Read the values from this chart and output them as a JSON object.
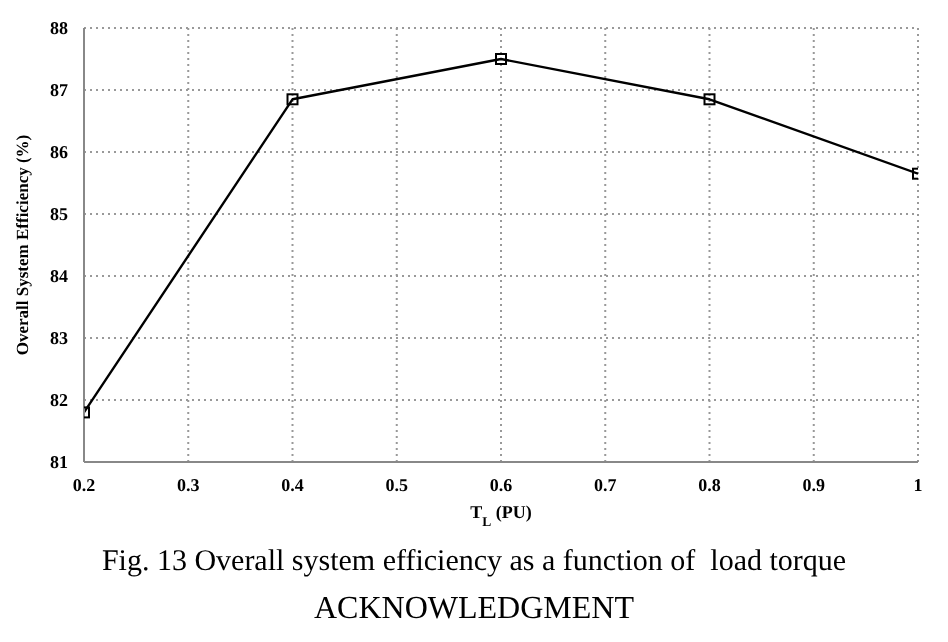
{
  "chart_data": {
    "type": "line",
    "xlabel": "T$_{L}$ (PU)",
    "ylabel": "Overall System Efficiency (%)",
    "x": [
      0.2,
      0.4,
      0.6,
      0.8,
      1
    ],
    "series": [
      {
        "color": "#000000",
        "values": [
          81.8,
          86.85,
          87.5,
          86.85,
          85.65
        ]
      }
    ],
    "xlim": [
      0.2,
      1
    ],
    "xticks": [
      0.2,
      0.3,
      0.4,
      0.5,
      0.6,
      0.7,
      0.8,
      0.9,
      1
    ],
    "ylim": [
      81,
      88
    ],
    "yticks": [
      81,
      82,
      83,
      84,
      85,
      86,
      87,
      88
    ],
    "grid": true,
    "marker": "square",
    "line_style": "solid",
    "annotations": [
      "Fig. 13 Overall system efficiency as a function of  load torque",
      "ACKNOWLEDGMENT"
    ]
  }
}
